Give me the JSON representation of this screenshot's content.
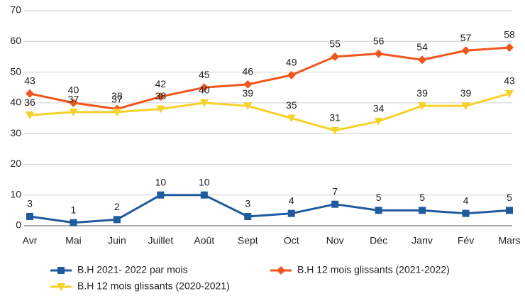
{
  "chart_data": {
    "type": "line",
    "categories": [
      "Avr",
      "Mai",
      "Juin",
      "Juillet",
      "Août",
      "Sept",
      "Oct",
      "Nov",
      "Déc",
      "Janv",
      "Fév",
      "Mars"
    ],
    "series": [
      {
        "name": "B.H 2021- 2022 par mois",
        "color": "#1f5a9e",
        "marker": "square",
        "values": [
          3,
          1,
          2,
          10,
          10,
          3,
          4,
          7,
          5,
          5,
          4,
          5
        ]
      },
      {
        "name": "B.H 12 mois glissants (2021-2022)",
        "color": "#f0561d",
        "marker": "diamond",
        "values": [
          43,
          40,
          38,
          42,
          45,
          46,
          49,
          55,
          56,
          54,
          57,
          58
        ]
      },
      {
        "name": "B.H 12 mois glissants (2020-2021)",
        "color": "#f5d22a",
        "marker": "triangle-down",
        "values": [
          36,
          37,
          37,
          38,
          40,
          39,
          35,
          31,
          34,
          39,
          39,
          43
        ]
      }
    ],
    "ylim": [
      0,
      70
    ],
    "yticks": [
      0,
      10,
      20,
      30,
      40,
      50,
      60,
      70
    ],
    "grid": true,
    "legend": "bottom"
  }
}
